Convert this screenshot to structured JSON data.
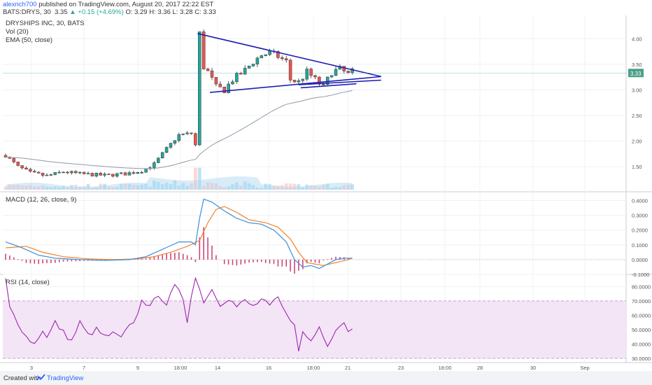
{
  "header": {
    "author": "alexrich700",
    "published_text": "published on TradingView.com, August 20, 2017 22:22 EST",
    "symbol": "BATS:DRYS, 30",
    "last": "3.35",
    "change": "+0.15 (+4.69%)",
    "ohlc": "O: 3.29 H: 3.36 L: 3.28 C: 3.33"
  },
  "footer": {
    "created_with": "Created with",
    "brand": "TradingView"
  },
  "colors": {
    "up": "#26a69a",
    "down": "#ef5350",
    "trendline": "#1f1fb4",
    "ema": "#8e9aa8",
    "macd": "#3a8fd8",
    "signal": "#f5822a",
    "rsi": "#9c27b0",
    "rsi_band": "#f3e5f5",
    "volume_up": "#bfe3f4",
    "volume_down": "#ffd6d6"
  },
  "chart_data": [
    {
      "type": "candlestick",
      "title": "DRYSHIPS INC, 30, BATS",
      "indicator_labels": [
        "Vol (20)",
        "EMA (50, close)"
      ],
      "ylim": [
        1.05,
        4.4
      ],
      "y_ticks": [
        "4.00",
        "3.50",
        "3.00",
        "2.50",
        "2.00",
        "1.50"
      ],
      "last_price_label": "3.33",
      "x_ticks": [
        "3",
        "7",
        "9",
        "18:00",
        "14",
        "16",
        "18:00",
        "21",
        "23",
        "18:00",
        "28",
        "30",
        "Sep"
      ],
      "price_keypoints": [
        [
          0,
          1.72
        ],
        [
          3,
          1.5
        ],
        [
          6,
          1.38
        ],
        [
          10,
          1.32
        ],
        [
          14,
          1.4
        ],
        [
          18,
          1.36
        ],
        [
          24,
          1.33
        ],
        [
          29,
          1.36
        ],
        [
          33,
          1.42
        ],
        [
          36,
          1.55
        ],
        [
          39,
          1.85
        ],
        [
          42,
          2.12
        ],
        [
          45,
          2.15
        ],
        [
          46,
          1.92
        ],
        [
          47,
          4.1
        ],
        [
          48,
          3.45
        ],
        [
          49,
          3.35
        ],
        [
          51,
          3.05
        ],
        [
          53,
          3.0
        ],
        [
          55,
          3.2
        ],
        [
          58,
          3.38
        ],
        [
          60,
          3.55
        ],
        [
          62,
          3.68
        ],
        [
          64,
          3.72
        ],
        [
          66,
          3.65
        ],
        [
          68,
          3.55
        ],
        [
          69,
          3.2
        ],
        [
          71,
          3.15
        ],
        [
          73,
          3.35
        ],
        [
          75,
          3.2
        ],
        [
          77,
          3.05
        ],
        [
          79,
          3.35
        ],
        [
          81,
          3.4
        ],
        [
          83,
          3.3
        ],
        [
          84,
          3.35
        ]
      ],
      "trendlines": [
        {
          "from": [
            46.5,
            4.1
          ],
          "to": [
            91,
            3.26
          ]
        },
        {
          "from": [
            49.5,
            2.95
          ],
          "to": [
            91,
            3.26
          ]
        },
        {
          "from": [
            71,
            3.1
          ],
          "to": [
            91,
            3.19
          ]
        },
        {
          "from": [
            71.5,
            3.04
          ],
          "to": [
            85,
            3.12
          ]
        }
      ]
    },
    {
      "type": "line",
      "title": "MACD (12, 26, close, 9)",
      "ylim": [
        -0.1,
        0.45
      ],
      "y_ticks": [
        "0.4000",
        "0.3000",
        "0.2000",
        "0.1000",
        "0.0000",
        "-0.1000"
      ],
      "macd_keypoints": [
        [
          0,
          0.12
        ],
        [
          4,
          0.08
        ],
        [
          8,
          0.03
        ],
        [
          12,
          0.01
        ],
        [
          18,
          0.0
        ],
        [
          24,
          -0.005
        ],
        [
          30,
          0.0
        ],
        [
          34,
          0.02
        ],
        [
          38,
          0.07
        ],
        [
          42,
          0.12
        ],
        [
          45,
          0.12
        ],
        [
          46,
          0.1
        ],
        [
          47,
          0.28
        ],
        [
          48,
          0.41
        ],
        [
          50,
          0.39
        ],
        [
          53,
          0.33
        ],
        [
          56,
          0.28
        ],
        [
          59,
          0.25
        ],
        [
          62,
          0.24
        ],
        [
          65,
          0.2
        ],
        [
          68,
          0.12
        ],
        [
          70,
          0.0
        ],
        [
          72,
          -0.05
        ],
        [
          74,
          -0.04
        ],
        [
          76,
          -0.06
        ],
        [
          78,
          -0.03
        ],
        [
          80,
          0.0
        ],
        [
          82,
          0.01
        ],
        [
          84,
          0.01
        ]
      ],
      "signal_keypoints": [
        [
          0,
          0.08
        ],
        [
          5,
          0.09
        ],
        [
          9,
          0.05
        ],
        [
          14,
          0.02
        ],
        [
          20,
          0.005
        ],
        [
          26,
          0.0
        ],
        [
          32,
          0.005
        ],
        [
          36,
          0.02
        ],
        [
          40,
          0.05
        ],
        [
          44,
          0.09
        ],
        [
          47,
          0.13
        ],
        [
          49,
          0.25
        ],
        [
          51,
          0.34
        ],
        [
          53,
          0.36
        ],
        [
          56,
          0.32
        ],
        [
          59,
          0.27
        ],
        [
          63,
          0.25
        ],
        [
          66,
          0.22
        ],
        [
          69,
          0.14
        ],
        [
          71,
          0.05
        ],
        [
          73,
          -0.02
        ],
        [
          75,
          -0.03
        ],
        [
          77,
          -0.04
        ],
        [
          80,
          -0.02
        ],
        [
          83,
          0.0
        ],
        [
          84,
          0.01
        ]
      ]
    },
    {
      "type": "line",
      "title": "RSI (14, close)",
      "ylim": [
        27,
        88
      ],
      "band": [
        30,
        70
      ],
      "y_ticks": [
        "80.0000",
        "70.0000",
        "60.0000",
        "50.0000",
        "40.0000",
        "30.0000"
      ],
      "rsi_keypoints": [
        [
          0,
          85
        ],
        [
          1,
          65
        ],
        [
          3,
          55
        ],
        [
          5,
          45
        ],
        [
          7,
          40
        ],
        [
          9,
          50
        ],
        [
          10,
          44
        ],
        [
          12,
          55
        ],
        [
          14,
          48
        ],
        [
          16,
          42
        ],
        [
          18,
          55
        ],
        [
          20,
          46
        ],
        [
          22,
          50
        ],
        [
          24,
          45
        ],
        [
          26,
          47
        ],
        [
          28,
          44
        ],
        [
          30,
          52
        ],
        [
          32,
          60
        ],
        [
          33,
          72
        ],
        [
          35,
          65
        ],
        [
          37,
          75
        ],
        [
          39,
          68
        ],
        [
          41,
          80
        ],
        [
          43,
          72
        ],
        [
          44,
          56
        ],
        [
          45,
          75
        ],
        [
          46,
          86
        ],
        [
          48,
          70
        ],
        [
          50,
          78
        ],
        [
          52,
          68
        ],
        [
          54,
          72
        ],
        [
          56,
          66
        ],
        [
          58,
          70
        ],
        [
          60,
          66
        ],
        [
          62,
          71
        ],
        [
          64,
          66
        ],
        [
          66,
          72
        ],
        [
          68,
          60
        ],
        [
          70,
          55
        ],
        [
          71,
          34
        ],
        [
          72,
          48
        ],
        [
          74,
          42
        ],
        [
          76,
          52
        ],
        [
          78,
          40
        ],
        [
          80,
          50
        ],
        [
          82,
          56
        ],
        [
          83,
          48
        ],
        [
          84,
          52
        ]
      ]
    }
  ]
}
